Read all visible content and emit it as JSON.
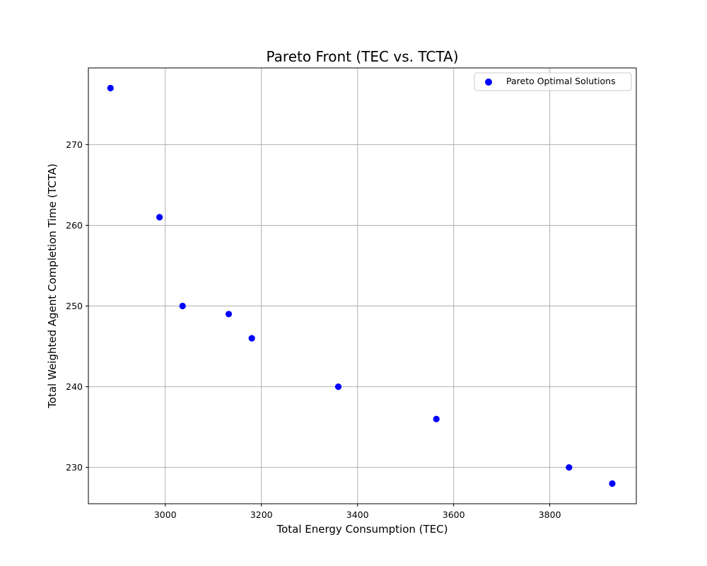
{
  "chart_data": {
    "type": "scatter",
    "title": "Pareto Front (TEC vs. TCTA)",
    "xlabel": "Total Energy Consumption (TEC)",
    "ylabel": "Total Weighted Agent Completion Time (TCTA)",
    "xlim": [
      2840,
      3980
    ],
    "ylim": [
      225.5,
      279.5
    ],
    "xticks": [
      3000,
      3200,
      3400,
      3600,
      3800
    ],
    "yticks": [
      230,
      240,
      250,
      260,
      270
    ],
    "grid": true,
    "legend_position": "top-right",
    "series": [
      {
        "name": "Pareto Optimal Solutions",
        "color": "#0000ff",
        "marker": "circle",
        "points": [
          {
            "x": 2886,
            "y": 277
          },
          {
            "x": 2988,
            "y": 261
          },
          {
            "x": 3036,
            "y": 250
          },
          {
            "x": 3132,
            "y": 249
          },
          {
            "x": 3180,
            "y": 246
          },
          {
            "x": 3360,
            "y": 240
          },
          {
            "x": 3564,
            "y": 236
          },
          {
            "x": 3840,
            "y": 230
          },
          {
            "x": 3930,
            "y": 228
          }
        ]
      }
    ]
  }
}
